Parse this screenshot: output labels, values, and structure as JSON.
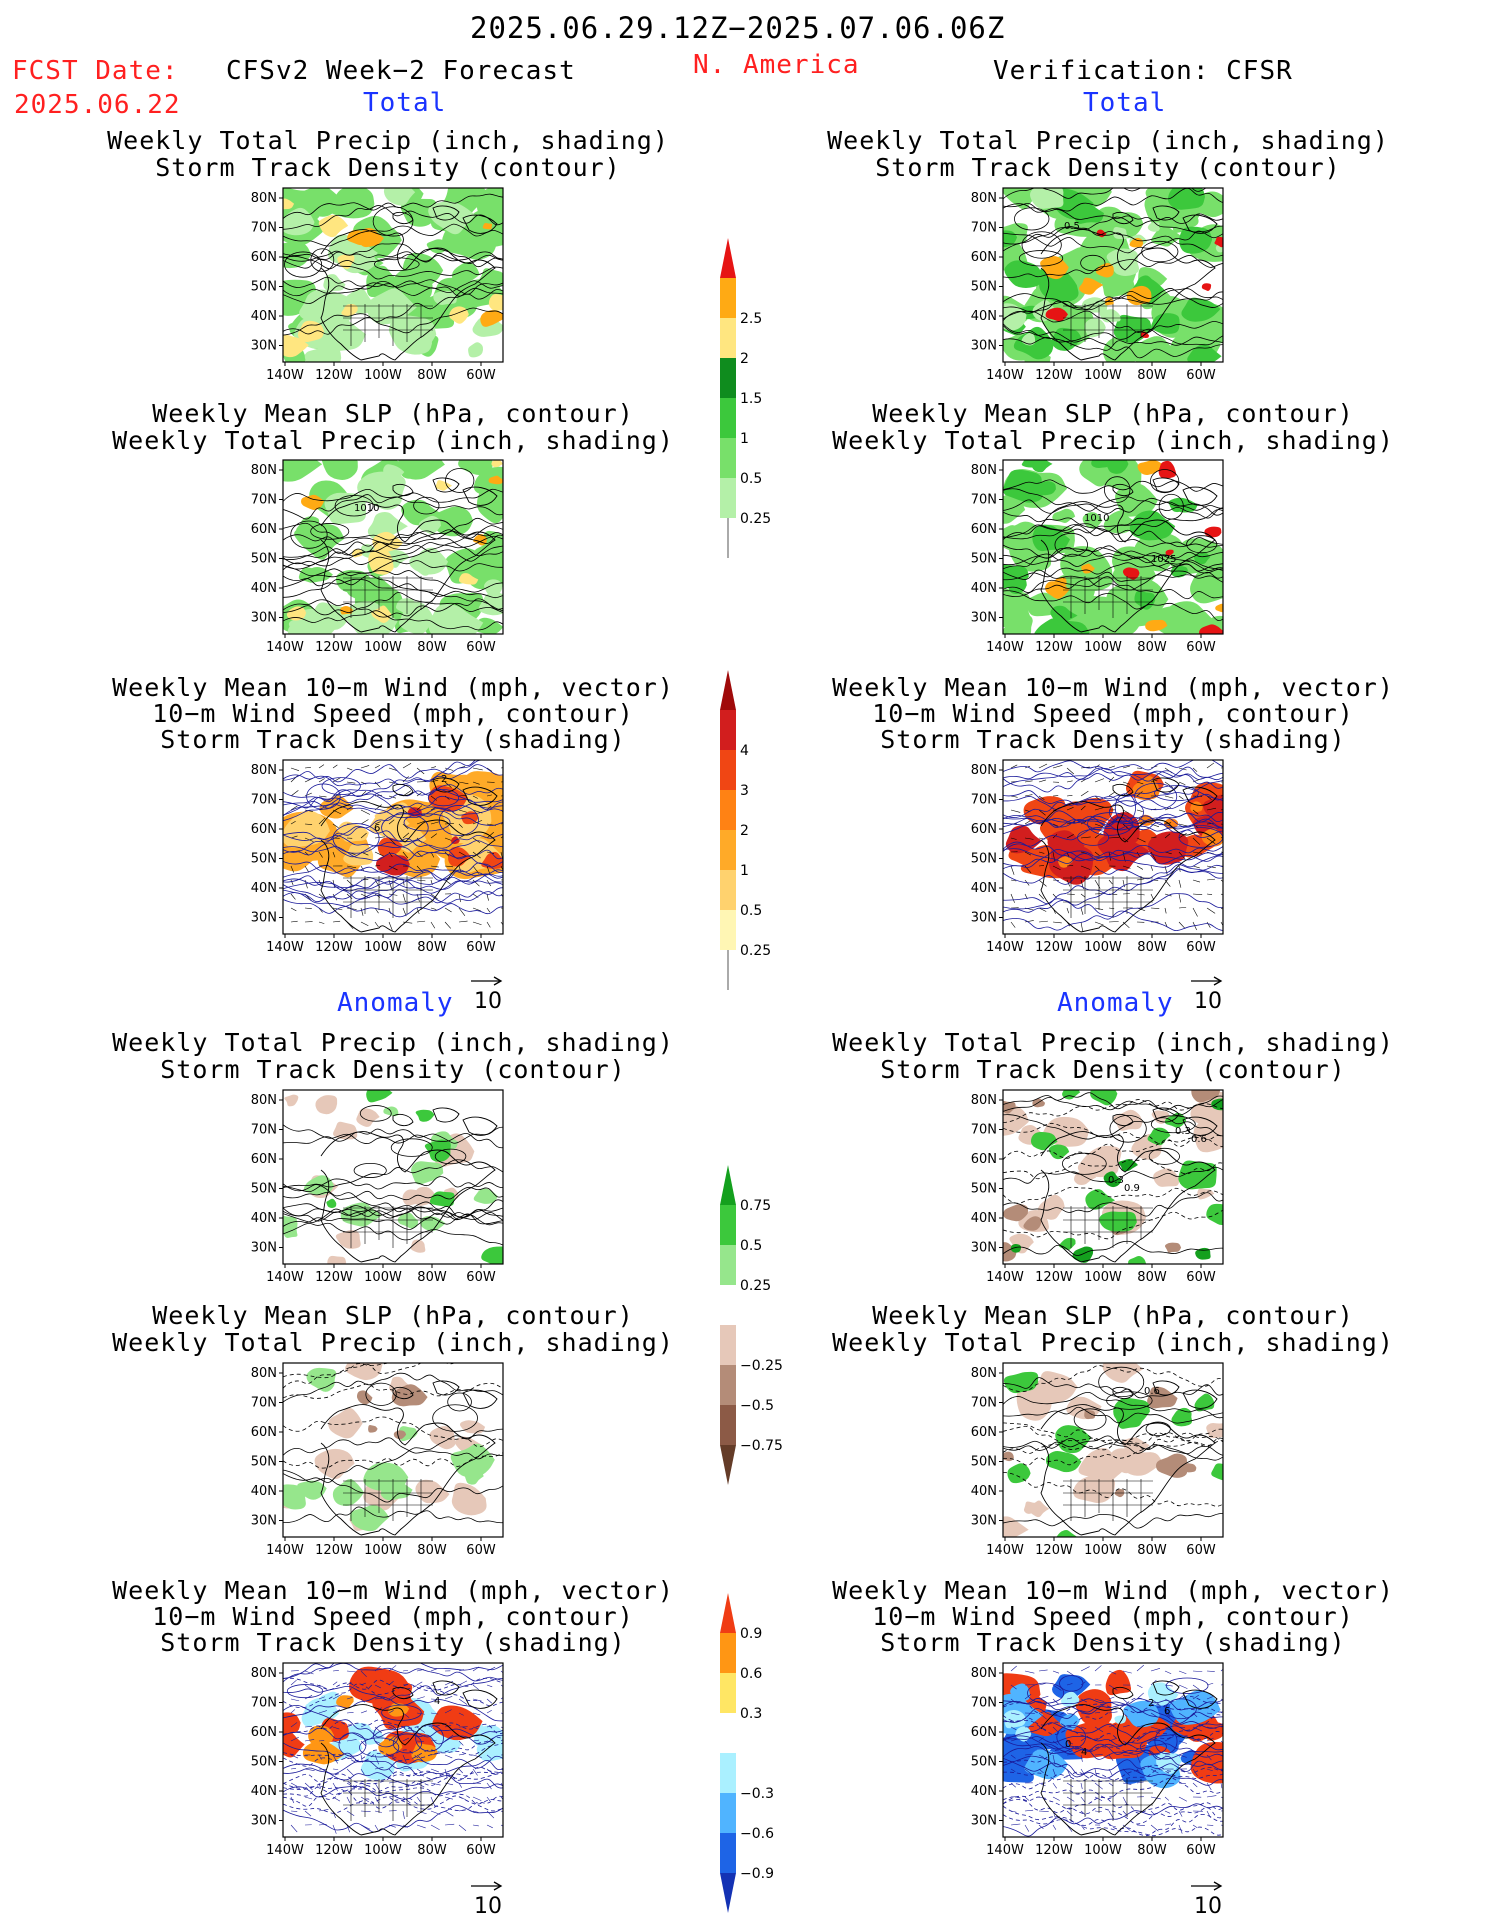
{
  "header": {
    "period": "2025.06.29.12Z−2025.07.06.06Z",
    "fcst_label": "FCST Date:",
    "fcst_date": "2025.06.22",
    "model": "CFSv2 Week−2 Forecast",
    "region": "N. America",
    "verification": "Verification: CFSR"
  },
  "sections": {
    "total": "Total",
    "anomaly": "Anomaly"
  },
  "panel_titles": {
    "precip_storm": [
      "Weekly Total Precip (inch, shading)",
      "Storm Track Density (contour)"
    ],
    "slp_precip": [
      "Weekly Mean SLP (hPa, contour)",
      "Weekly Total Precip (inch, shading)"
    ],
    "wind_storm": [
      "Weekly Mean 10−m Wind (mph, vector)",
      "10−m Wind Speed (mph, contour)",
      "Storm Track Density (shading)"
    ]
  },
  "map_axes": {
    "lat_labels": [
      "80N",
      "70N",
      "60N",
      "50N",
      "40N",
      "30N"
    ],
    "lon_labels": [
      "140W",
      "120W",
      "100W",
      "80W",
      "60W"
    ]
  },
  "contour_labels": {
    "fc_slp_total": "1010",
    "vf_slp_total_a": "1010",
    "vf_slp_total_b": "1025",
    "vf_precip_total": "0.5",
    "fc_wind_total": "6",
    "fc_wind_total_b": "2",
    "vf_prec_anom_a": "0.9",
    "vf_prec_anom_b": "0.6",
    "vf_prec_anom_c": "0.3",
    "vf_prec_anom_d": "0.3",
    "vf_slp_anom": "0.6",
    "fc_wind_anom": "4",
    "vf_wind_anom_a": "6",
    "vf_wind_anom_b": "4",
    "vf_wind_anom_c": "2",
    "vf_wind_anom_d": "0"
  },
  "vector_ref": "10",
  "colorbars": {
    "precip_total": {
      "ticks": [
        "0.25",
        "0.5",
        "1",
        "1.5",
        "2",
        "2.5"
      ],
      "colors": [
        "#b4f0a8",
        "#78e06a",
        "#3cc83c",
        "#0f8c1e",
        "#ffe680",
        "#ffaa14",
        "#e61414"
      ]
    },
    "storm_total": {
      "ticks": [
        "0.25",
        "0.5",
        "1",
        "2",
        "3",
        "4"
      ],
      "colors": [
        "#fff6b4",
        "#ffd26e",
        "#ffaa28",
        "#ff8214",
        "#f04614",
        "#d21e1e",
        "#a00a0a"
      ]
    },
    "precip_anom": {
      "ticks": [
        "0.75",
        "0.5",
        "0.25",
        "−0.25",
        "−0.5",
        "−0.75"
      ],
      "colors": [
        "#14a01e",
        "#3cc83c",
        "#96e68c",
        "#ffffff",
        "#e6c8b9",
        "#b48c78",
        "#8c5a46",
        "#643c28"
      ]
    },
    "wind_anom": {
      "ticks": [
        "0.9",
        "0.6",
        "0.3",
        "−0.3",
        "−0.6",
        "−0.9"
      ],
      "colors": [
        "#f03c14",
        "#ff9614",
        "#ffe664",
        "#ffffff",
        "#aaf0ff",
        "#50b4ff",
        "#1e64e6",
        "#1432b4"
      ]
    }
  }
}
